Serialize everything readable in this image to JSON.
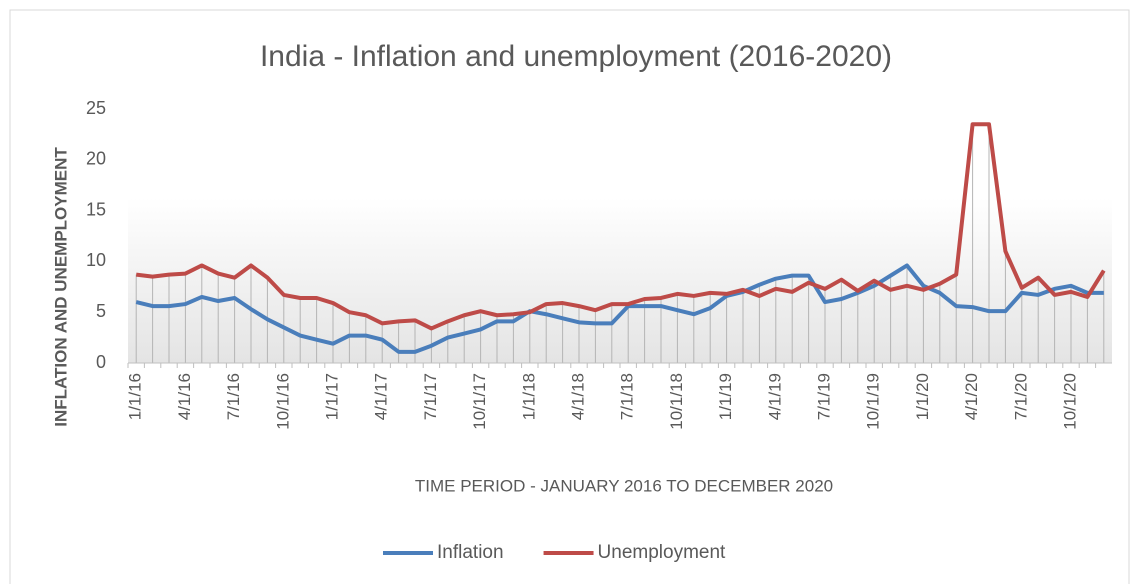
{
  "chart_data": {
    "type": "line",
    "title": "India - Inflation and unemployment  (2016-2020)",
    "xlabel": "TIME PERIOD - JANUARY 2016 TO DECEMBER 2020",
    "ylabel": "INFLATION AND UNEMPLOYMENT",
    "categories": [
      "1/1/16",
      null,
      null,
      "4/1/16",
      null,
      null,
      "7/1/16",
      null,
      null,
      "10/1/16",
      null,
      null,
      "1/1/17",
      null,
      null,
      "4/1/17",
      null,
      null,
      "7/1/17",
      null,
      null,
      "10/1/17",
      null,
      null,
      "1/1/18",
      null,
      null,
      "4/1/18",
      null,
      null,
      "7/1/18",
      null,
      null,
      "10/1/18",
      null,
      null,
      "1/1/19",
      null,
      null,
      "4/1/19",
      null,
      null,
      "7/1/19",
      null,
      null,
      "10/1/19",
      null,
      null,
      "1/1/20",
      null,
      null,
      "4/1/20",
      null,
      null,
      "7/1/20",
      null,
      null,
      "10/1/20",
      null,
      null
    ],
    "series": [
      {
        "name": "Inflation",
        "color": "#4a7ebb",
        "values": [
          6.0,
          5.6,
          5.6,
          5.8,
          6.5,
          6.1,
          6.4,
          5.3,
          4.3,
          3.5,
          2.7,
          2.3,
          1.9,
          2.7,
          2.7,
          2.3,
          1.1,
          1.1,
          1.7,
          2.5,
          2.9,
          3.3,
          4.1,
          4.1,
          5.1,
          4.8,
          4.4,
          4.0,
          3.9,
          3.9,
          5.6,
          5.6,
          5.6,
          5.2,
          4.8,
          5.4,
          6.6,
          7.0,
          7.7,
          8.3,
          8.6,
          8.6,
          6.0,
          6.3,
          6.9,
          7.6,
          8.6,
          9.6,
          7.6,
          6.9,
          5.6,
          5.5,
          5.1,
          5.1,
          6.9,
          6.7,
          7.3,
          7.6,
          6.9,
          6.9
        ]
      },
      {
        "name": "Unemployment",
        "color": "#be4b48",
        "values": [
          8.7,
          8.5,
          8.7,
          8.8,
          9.6,
          8.8,
          8.4,
          9.6,
          8.4,
          6.7,
          6.4,
          6.4,
          5.9,
          5.0,
          4.7,
          3.9,
          4.1,
          4.2,
          3.4,
          4.1,
          4.7,
          5.1,
          4.7,
          4.8,
          5.0,
          5.8,
          5.9,
          5.6,
          5.2,
          5.8,
          5.8,
          6.3,
          6.4,
          6.8,
          6.6,
          6.9,
          6.8,
          7.2,
          6.6,
          7.3,
          7.0,
          7.9,
          7.3,
          8.2,
          7.1,
          8.1,
          7.2,
          7.6,
          7.2,
          7.8,
          8.7,
          23.5,
          23.5,
          11.0,
          7.4,
          8.4,
          6.7,
          7.0,
          6.5,
          9.1
        ]
      }
    ],
    "ylim": [
      0,
      25
    ],
    "yticks": [
      0,
      5,
      10,
      15,
      20,
      25
    ],
    "legend": "bottom",
    "drop_lines": true
  }
}
